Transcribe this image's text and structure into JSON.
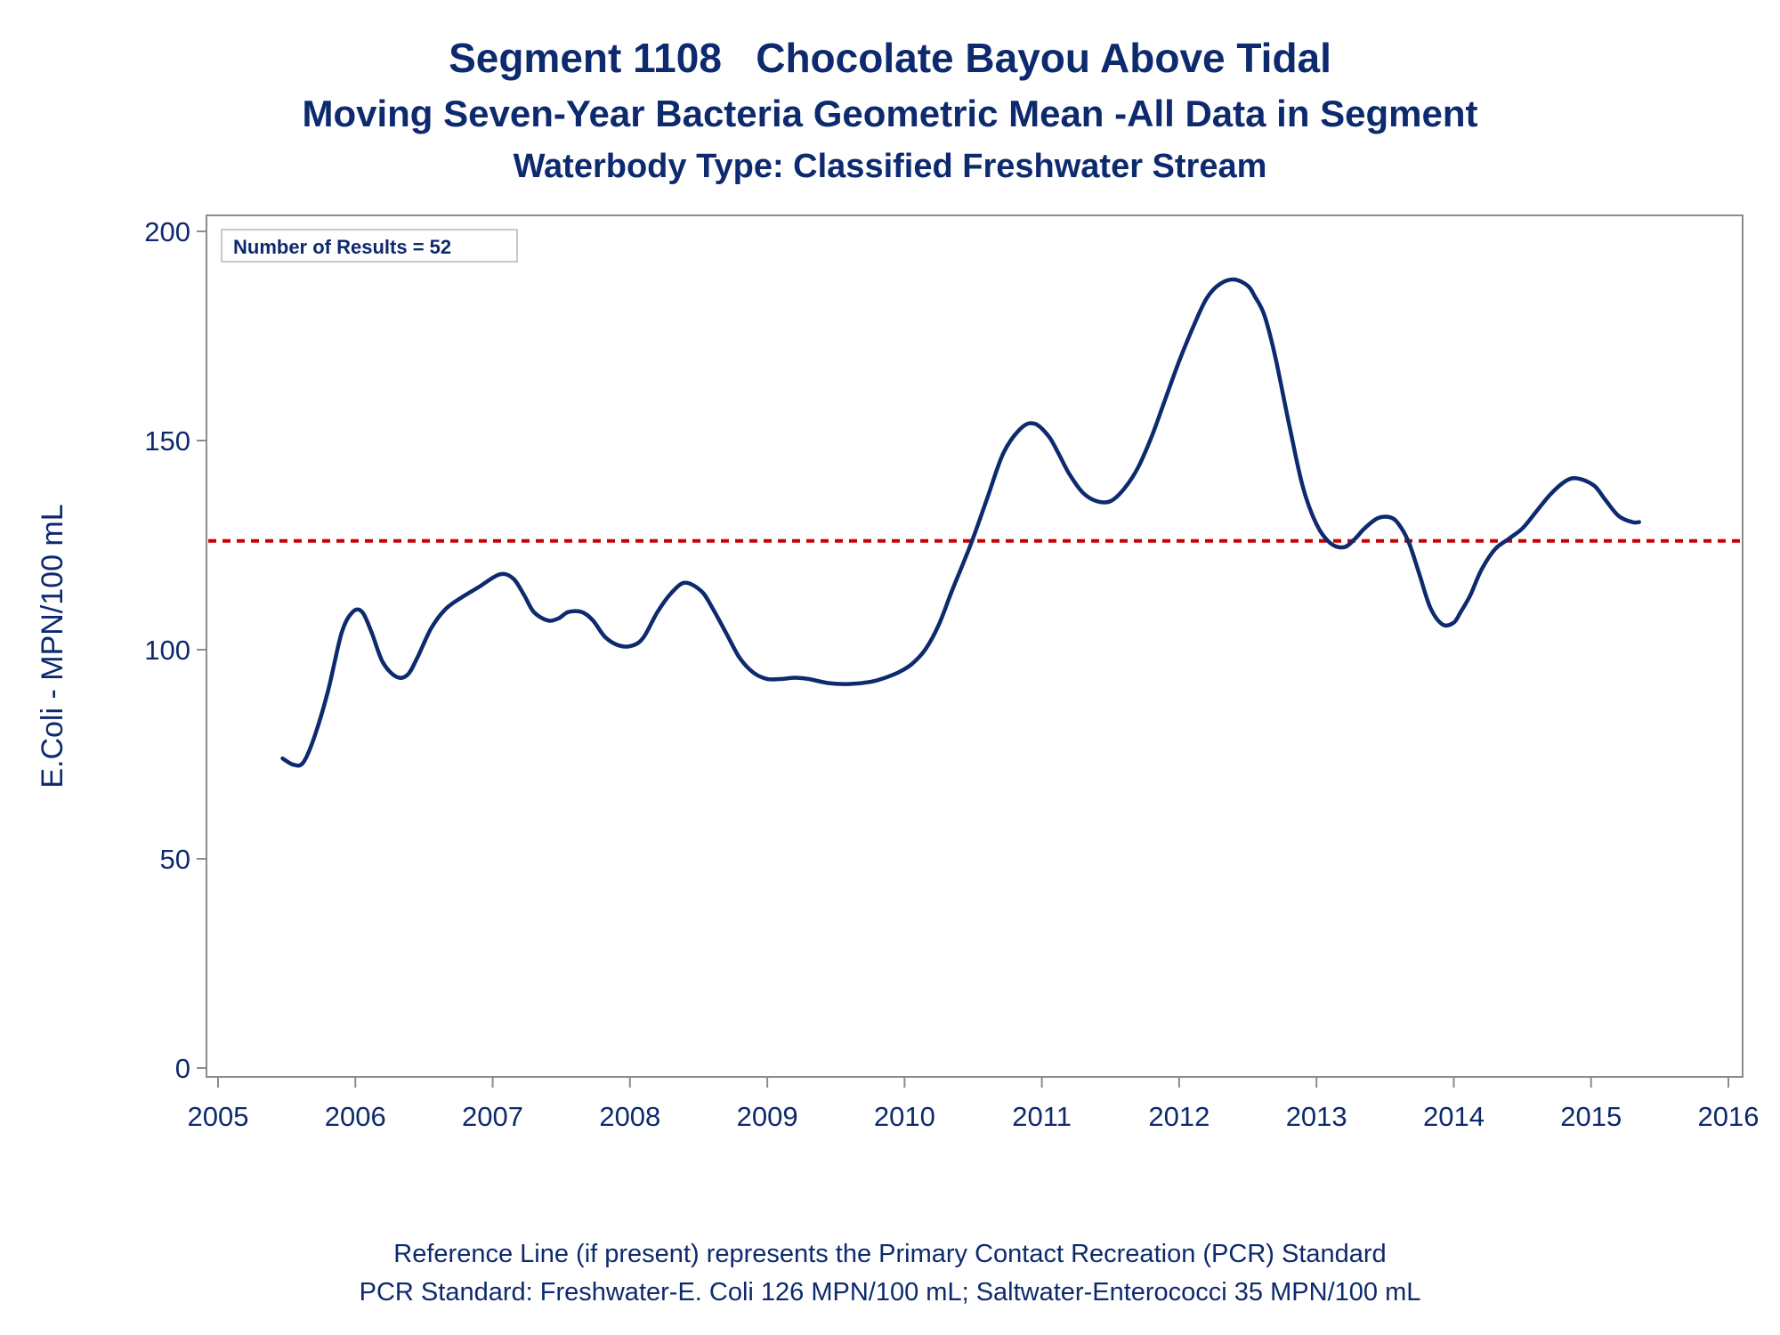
{
  "header": {
    "title": "Segment 1108   Chocolate Bayou Above Tidal",
    "subtitle": "Moving Seven-Year Bacteria Geometric Mean -All Data in Segment",
    "subtitle2": "Waterbody Type: Classified Freshwater Stream"
  },
  "footer": {
    "line1": "Reference Line (if present) represents the Primary Contact Recreation (PCR) Standard",
    "line2": "PCR Standard: Freshwater-E. Coli 126 MPN/100 mL; Saltwater-Enterococci 35 MPN/100 mL"
  },
  "chart_data": {
    "type": "line",
    "title": "Segment 1108   Chocolate Bayou Above Tidal",
    "ylabel": "E.Coli - MPN/100 mL",
    "xlabel": "",
    "xlim": [
      2005,
      2016
    ],
    "ylim": [
      0,
      200
    ],
    "x_ticks": [
      2005,
      2006,
      2007,
      2008,
      2009,
      2010,
      2011,
      2012,
      2013,
      2014,
      2015,
      2016
    ],
    "y_ticks": [
      0,
      50,
      100,
      150,
      200
    ],
    "grid": false,
    "annotation": "Number of Results = 52",
    "reference_line": {
      "y": 126,
      "style": "dashed",
      "color": "#cc0000"
    },
    "series": [
      {
        "color": "#0d2a6e",
        "x": [
          2005.47,
          2005.55,
          2005.62,
          2005.7,
          2005.8,
          2005.9,
          2005.98,
          2006.05,
          2006.12,
          2006.2,
          2006.3,
          2006.38,
          2006.45,
          2006.55,
          2006.65,
          2006.75,
          2006.9,
          2007.05,
          2007.15,
          2007.23,
          2007.3,
          2007.4,
          2007.48,
          2007.55,
          2007.65,
          2007.73,
          2007.82,
          2007.92,
          2008.02,
          2008.1,
          2008.2,
          2008.3,
          2008.4,
          2008.52,
          2008.6,
          2008.7,
          2008.8,
          2008.9,
          2009.0,
          2009.1,
          2009.2,
          2009.3,
          2009.45,
          2009.6,
          2009.75,
          2009.85,
          2009.95,
          2010.05,
          2010.15,
          2010.25,
          2010.35,
          2010.48,
          2010.6,
          2010.72,
          2010.85,
          2010.95,
          2011.05,
          2011.12,
          2011.2,
          2011.3,
          2011.4,
          2011.5,
          2011.6,
          2011.7,
          2011.8,
          2011.9,
          2012.0,
          2012.1,
          2012.2,
          2012.3,
          2012.4,
          2012.5,
          2012.55,
          2012.62,
          2012.7,
          2012.8,
          2012.9,
          2013.0,
          2013.1,
          2013.2,
          2013.28,
          2013.35,
          2013.45,
          2013.55,
          2013.62,
          2013.68,
          2013.75,
          2013.83,
          2013.92,
          2014.0,
          2014.05,
          2014.12,
          2014.2,
          2014.3,
          2014.4,
          2014.5,
          2014.6,
          2014.7,
          2014.8,
          2014.87,
          2014.95,
          2015.03,
          2015.1,
          2015.2,
          2015.3,
          2015.35
        ],
        "values": [
          74,
          72.5,
          73,
          79,
          90,
          104,
          109,
          109,
          104,
          97,
          93.5,
          94,
          98,
          105,
          109.5,
          112,
          115,
          118,
          117,
          113,
          109,
          107,
          107.5,
          109,
          109,
          107,
          103,
          101,
          101,
          103,
          109,
          113.5,
          116,
          114,
          110,
          104,
          98,
          94.5,
          93,
          93,
          93.3,
          93,
          92,
          91.8,
          92.3,
          93.2,
          94.5,
          96.5,
          100,
          106,
          114.5,
          125,
          136,
          147,
          153,
          154,
          151,
          147,
          142,
          137.5,
          135.5,
          135.5,
          138.5,
          143.5,
          151,
          160,
          169,
          177,
          184,
          187.5,
          188.5,
          187,
          184.5,
          180,
          170,
          154,
          139,
          130,
          125.5,
          124.5,
          126.5,
          129,
          131.5,
          131.5,
          129,
          125,
          118,
          110,
          106,
          106.5,
          109,
          113,
          119,
          124,
          126.5,
          129,
          133,
          137,
          140,
          141,
          140.5,
          139,
          136,
          132,
          130.5,
          130.5
        ]
      }
    ]
  }
}
